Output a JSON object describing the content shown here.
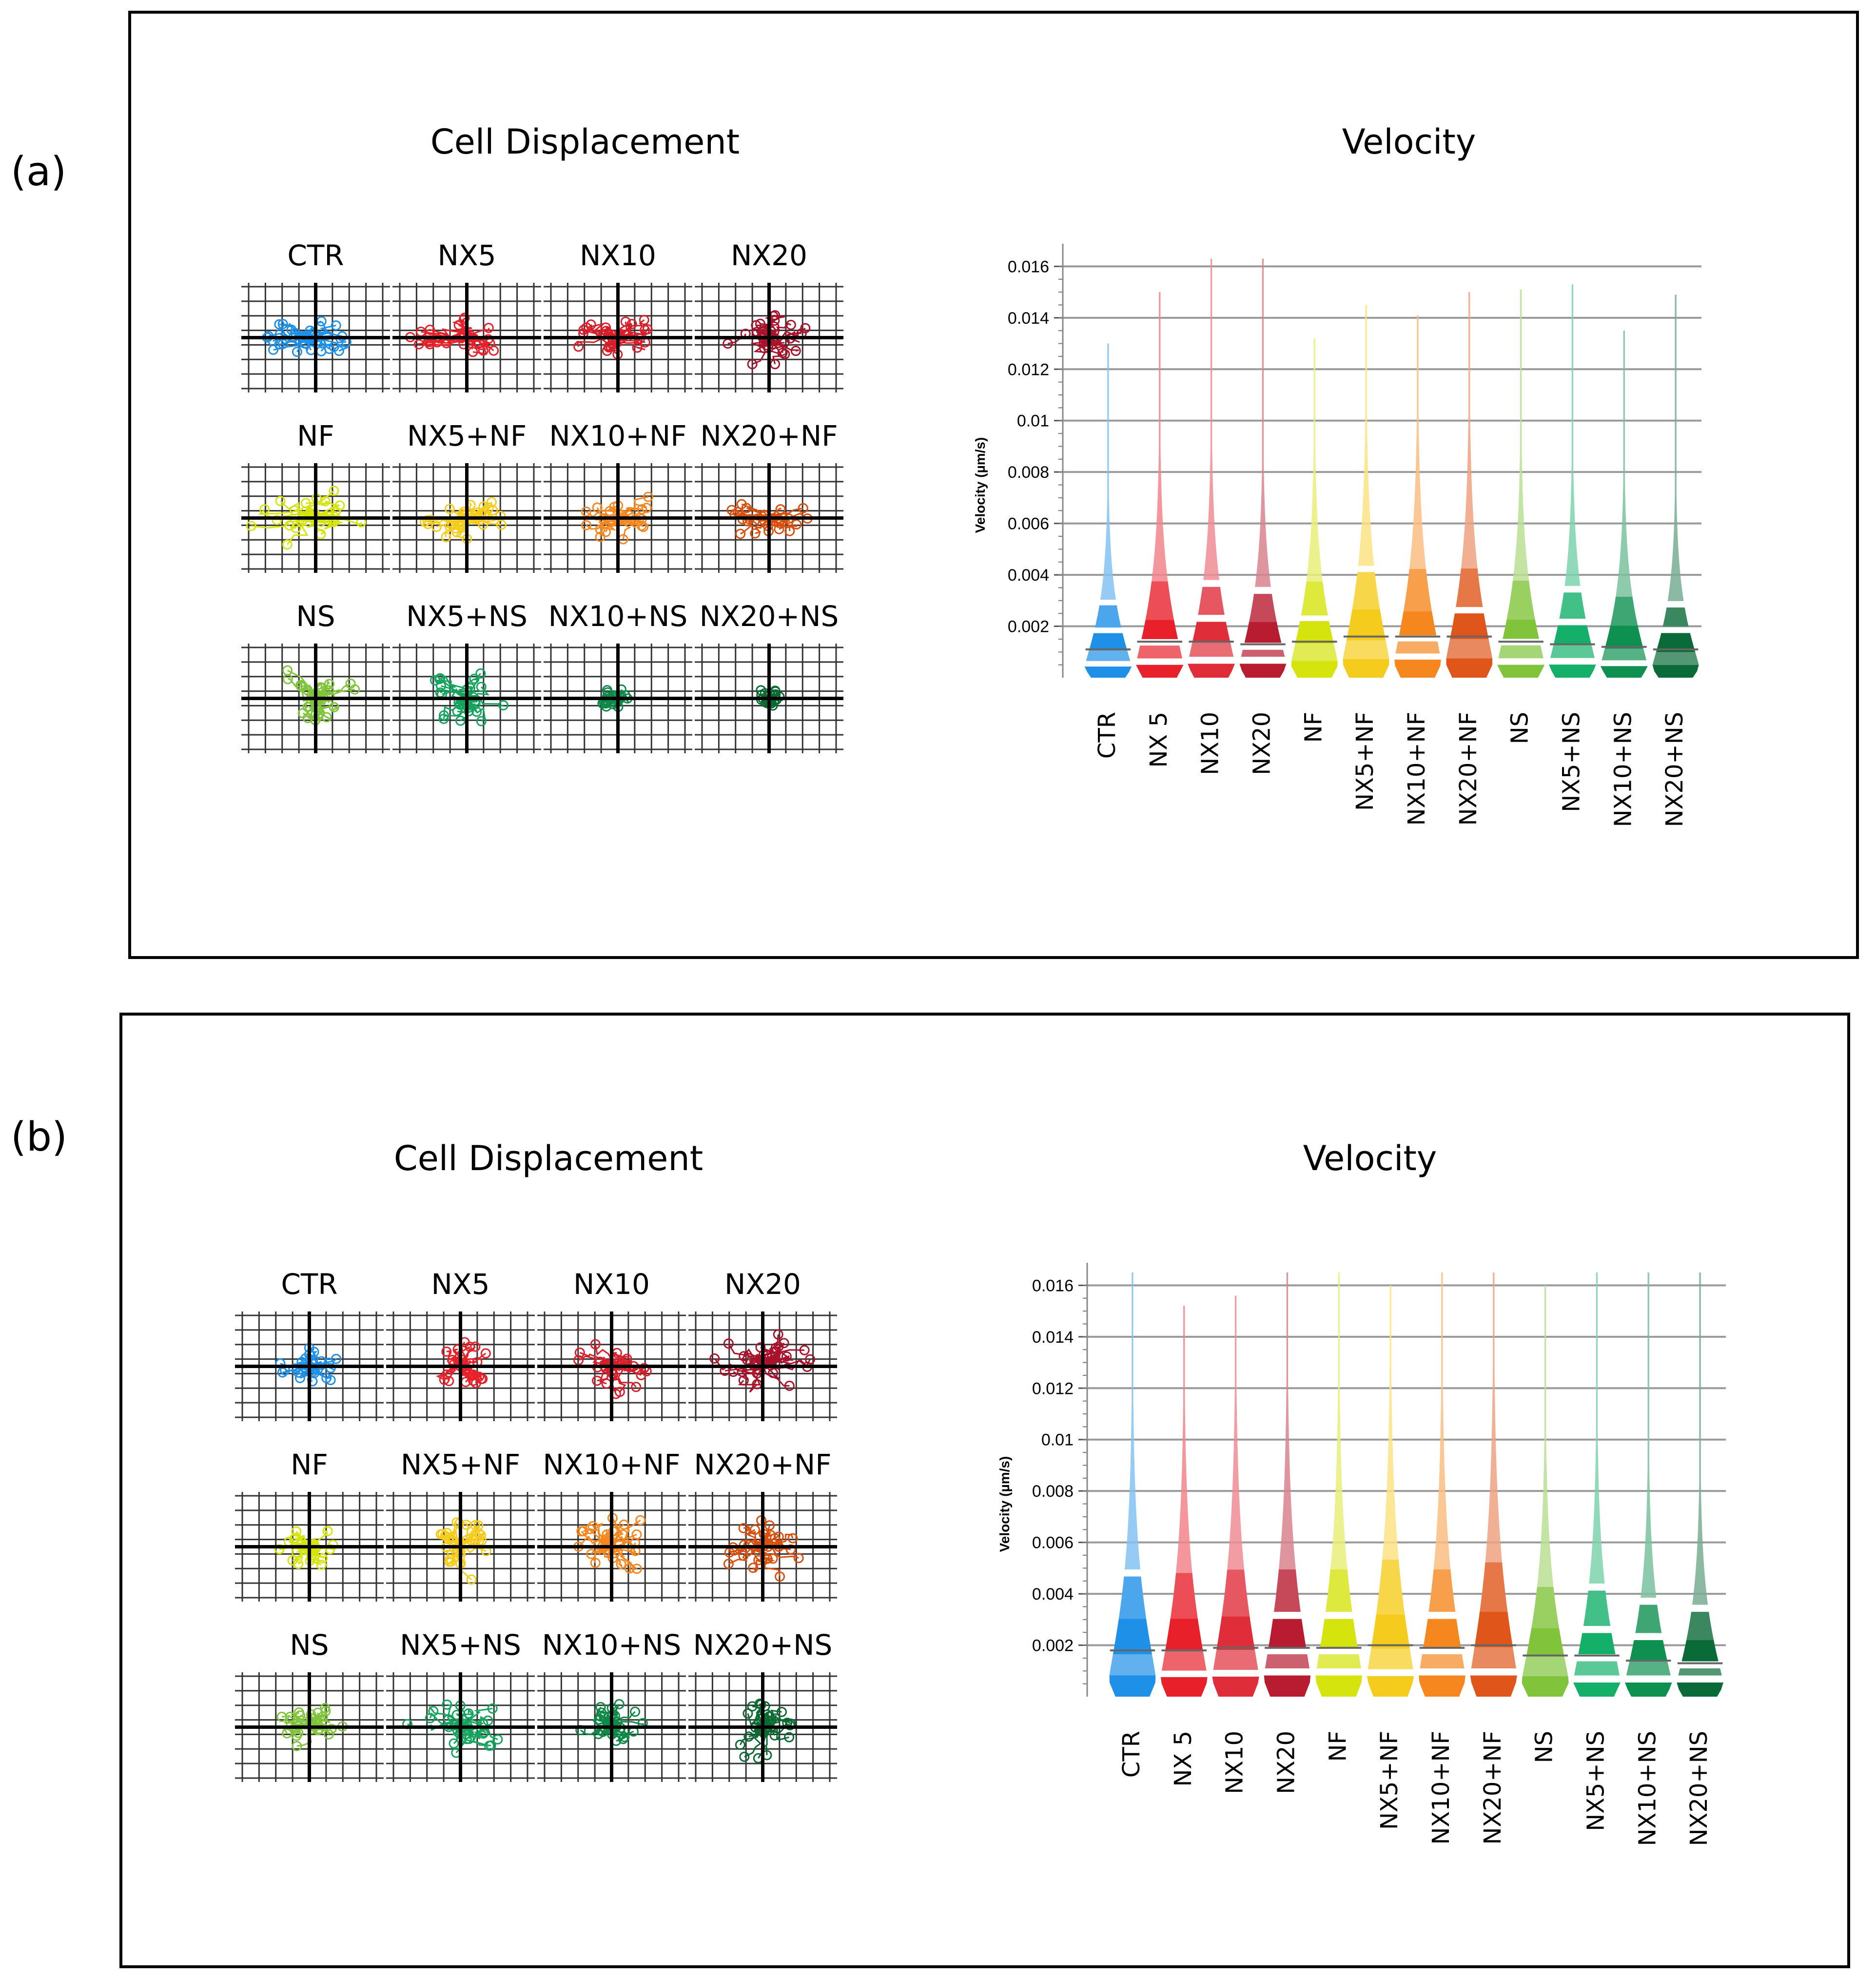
{
  "panels": [
    {
      "label": "(a)",
      "displacement_title": "Cell Displacement",
      "velocity_title": "Velocity",
      "displacement_cells": [
        {
          "label": "CTR",
          "color": "#1e90e8",
          "spread": [
            0.62,
            0.4
          ]
        },
        {
          "label": "NX5",
          "color": "#e8202a",
          "spread": [
            0.8,
            0.34
          ]
        },
        {
          "label": "NX10",
          "color": "#d81e2a",
          "spread": [
            0.66,
            0.42
          ]
        },
        {
          "label": "NX20",
          "color": "#a8122a",
          "spread": [
            0.6,
            0.48
          ]
        },
        {
          "label": "NF",
          "color": "#d4e40c",
          "spread": [
            0.82,
            0.46
          ]
        },
        {
          "label": "NX5+NF",
          "color": "#f6cc1c",
          "spread": [
            0.56,
            0.44
          ]
        },
        {
          "label": "NX10+NF",
          "color": "#f5871e",
          "spread": [
            0.58,
            0.42
          ]
        },
        {
          "label": "NX20+NF",
          "color": "#d9500e",
          "spread": [
            0.56,
            0.34
          ]
        },
        {
          "label": "NS",
          "color": "#7fc43a",
          "spread": [
            0.62,
            0.58
          ]
        },
        {
          "label": "NX5+NS",
          "color": "#14a45e",
          "spread": [
            0.54,
            0.54
          ]
        },
        {
          "label": "NX10+NS",
          "color": "#0e8a48",
          "spread": [
            0.2,
            0.2
          ]
        },
        {
          "label": "NX20+NS",
          "color": "#0a6a32",
          "spread": [
            0.14,
            0.18
          ]
        }
      ],
      "chart_data": {
        "type": "violin",
        "ylabel": "Velocity (µm/s)",
        "ylim": [
          0,
          0.0165
        ],
        "y_ticks": [
          0.002,
          0.004,
          0.006,
          0.008,
          0.01,
          0.012,
          0.014,
          0.016
        ],
        "y_tick_labels": [
          "0.002",
          "0.004",
          "0.006",
          "0.008",
          "0.01",
          "0.012",
          "0.014",
          "0.016"
        ],
        "categories": [
          "CTR",
          "NX 5",
          "NX10",
          "NX20",
          "NF",
          "NX5+NF",
          "NX10+NF",
          "NX20+NF",
          "NS",
          "NX5+NS",
          "NX10+NS",
          "NX20+NS"
        ],
        "colors": [
          "#1e90e8",
          "#e8202a",
          "#e02d3a",
          "#b81c30",
          "#d4e40c",
          "#f6cc1c",
          "#f5871e",
          "#e0561a",
          "#7fc43a",
          "#14b06a",
          "#0e9050",
          "#0a6a38"
        ],
        "max": [
          0.013,
          0.015,
          0.0163,
          0.0163,
          0.0132,
          0.0145,
          0.0141,
          0.015,
          0.0151,
          0.0153,
          0.0135,
          0.0149
        ],
        "median": [
          0.0011,
          0.0014,
          0.0014,
          0.0013,
          0.0014,
          0.0016,
          0.0016,
          0.0016,
          0.0014,
          0.0013,
          0.0012,
          0.0011
        ]
      }
    },
    {
      "label": "(b)",
      "displacement_title": "Cell Displacement",
      "velocity_title": "Velocity",
      "displacement_cells": [
        {
          "label": "CTR",
          "color": "#1e90e8",
          "spread": [
            0.42,
            0.34
          ]
        },
        {
          "label": "NX5",
          "color": "#e8202a",
          "spread": [
            0.4,
            0.44
          ]
        },
        {
          "label": "NX10",
          "color": "#d81e2a",
          "spread": [
            0.52,
            0.5
          ]
        },
        {
          "label": "NX20",
          "color": "#a8122a",
          "spread": [
            0.72,
            0.7
          ]
        },
        {
          "label": "NF",
          "color": "#d4e40c",
          "spread": [
            0.5,
            0.4
          ]
        },
        {
          "label": "NX5+NF",
          "color": "#f6cc1c",
          "spread": [
            0.4,
            0.56
          ]
        },
        {
          "label": "NX10+NF",
          "color": "#f5871e",
          "spread": [
            0.5,
            0.7
          ]
        },
        {
          "label": "NX20+NF",
          "color": "#d9500e",
          "spread": [
            0.52,
            0.5
          ]
        },
        {
          "label": "NS",
          "color": "#7fc43a",
          "spread": [
            0.56,
            0.38
          ]
        },
        {
          "label": "NX5+NS",
          "color": "#14a45e",
          "spread": [
            0.62,
            0.52
          ]
        },
        {
          "label": "NX10+NS",
          "color": "#0e8a48",
          "spread": [
            0.44,
            0.42
          ]
        },
        {
          "label": "NX20+NS",
          "color": "#0a6a32",
          "spread": [
            0.4,
            0.56
          ]
        }
      ],
      "chart_data": {
        "type": "violin",
        "ylabel": "Velocity (µm/s)",
        "ylim": [
          0,
          0.0165
        ],
        "y_ticks": [
          0.002,
          0.004,
          0.006,
          0.008,
          0.01,
          0.012,
          0.014,
          0.016
        ],
        "y_tick_labels": [
          "0.002",
          "0.004",
          "0.006",
          "0.008",
          "0.01",
          "0.012",
          "0.014",
          "0.016"
        ],
        "categories": [
          "CTR",
          "NX 5",
          "NX10",
          "NX20",
          "NF",
          "NX5+NF",
          "NX10+NF",
          "NX20+NF",
          "NS",
          "NX5+NS",
          "NX10+NS",
          "NX20+NS"
        ],
        "colors": [
          "#1e90e8",
          "#e8202a",
          "#e02d3a",
          "#b81c30",
          "#d4e40c",
          "#f6cc1c",
          "#f5871e",
          "#e0561a",
          "#7fc43a",
          "#14b06a",
          "#0e9050",
          "#0a6a38"
        ],
        "max": [
          0.0165,
          0.0152,
          0.0156,
          0.0165,
          0.0165,
          0.016,
          0.0165,
          0.0165,
          0.016,
          0.0165,
          0.0165,
          0.0165
        ],
        "median": [
          0.0018,
          0.0018,
          0.0019,
          0.0019,
          0.0019,
          0.002,
          0.0019,
          0.002,
          0.0016,
          0.0016,
          0.0014,
          0.0013
        ]
      }
    }
  ]
}
